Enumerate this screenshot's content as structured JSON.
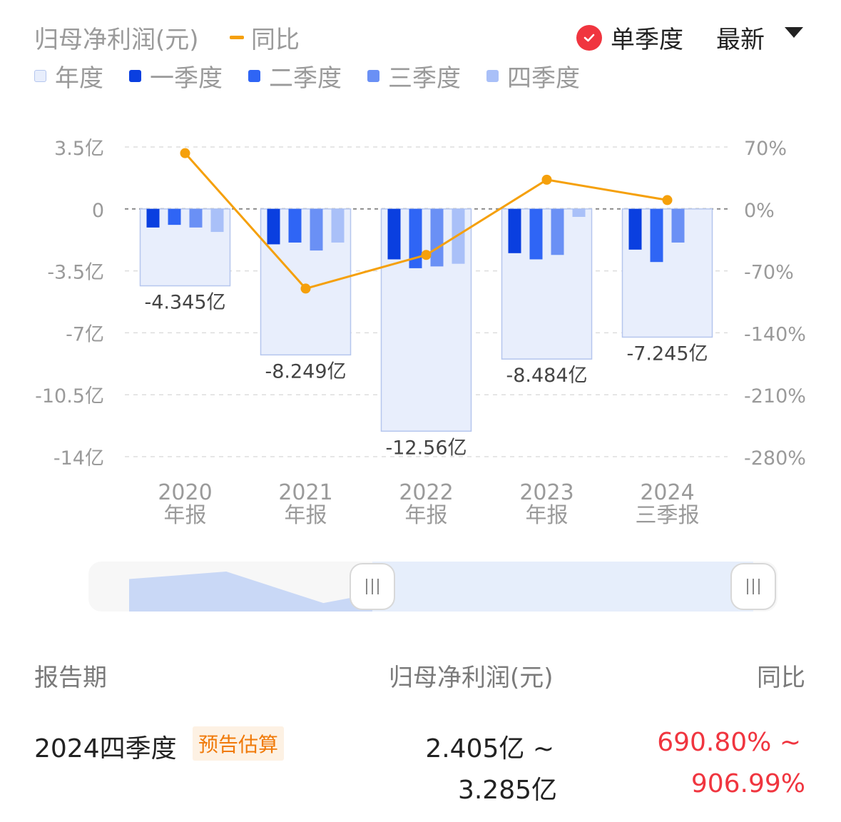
{
  "header": {
    "title": "归母净利润(元)",
    "yoy_label": "同比",
    "toggle_label": "单季度",
    "sort_label": "最新"
  },
  "legend": [
    {
      "label": "年度",
      "color": "#e8eefc"
    },
    {
      "label": "一季度",
      "color": "#0a3fe0"
    },
    {
      "label": "二季度",
      "color": "#2f65f5"
    },
    {
      "label": "三季度",
      "color": "#6a90f5"
    },
    {
      "label": "四季度",
      "color": "#a9c0f8"
    }
  ],
  "chart_data": {
    "type": "bar",
    "categories": [
      "2020\n年报",
      "2021\n年报",
      "2022\n年报",
      "2023\n年报",
      "2024\n三季报"
    ],
    "left_axis": {
      "ticks": [
        "3.5亿",
        "0",
        "-3.5亿",
        "-7亿",
        "-10.5亿",
        "-14亿"
      ],
      "values": [
        3.5,
        0,
        -3.5,
        -7,
        -10.5,
        -14
      ],
      "ylim": [
        -14,
        3.5
      ],
      "unit": "亿"
    },
    "right_axis": {
      "ticks": [
        "70%",
        "0%",
        "-70%",
        "-140%",
        "-210%",
        "-280%"
      ],
      "values": [
        70,
        0,
        -70,
        -140,
        -210,
        -280
      ],
      "ylim": [
        -280,
        70
      ]
    },
    "annual": {
      "name": "年度",
      "values": [
        -4.345,
        -8.249,
        -12.56,
        -8.484,
        -7.245
      ],
      "labels": [
        "-4.345亿",
        "-8.249亿",
        "-12.56亿",
        "-8.484亿",
        "-7.245亿"
      ]
    },
    "quarters": [
      {
        "name": "一季度",
        "values": [
          -1.05,
          -2.0,
          -2.85,
          -2.5,
          -2.3
        ]
      },
      {
        "name": "二季度",
        "values": [
          -0.9,
          -1.9,
          -3.35,
          -2.85,
          -3.0
        ]
      },
      {
        "name": "三季度",
        "values": [
          -1.05,
          -2.35,
          -3.25,
          -2.6,
          -1.9
        ]
      },
      {
        "name": "四季度",
        "values": [
          -1.3,
          -1.9,
          -3.1,
          -0.45,
          null
        ]
      }
    ],
    "yoy": {
      "name": "同比",
      "values": [
        63,
        -90,
        -52,
        33,
        10
      ]
    },
    "grid": true,
    "zero_line": "dashed"
  },
  "slider": {
    "overview": [
      0.78,
      1.0,
      0.08,
      0.62,
      0.0,
      0.35,
      0.42
    ],
    "range_start": 0.41,
    "range_end": 1.0
  },
  "table": {
    "col_period": "报告期",
    "col_profit": "归母净利润(元)",
    "col_yoy": "同比",
    "row": {
      "period": "2024四季度",
      "badge": "预告估算",
      "profit_line1": "2.405亿 ~",
      "profit_line2": "3.285亿",
      "yoy_line1": "690.80% ~",
      "yoy_line2": "906.99%"
    }
  },
  "colors": {
    "yoy_line": "#f5a00b",
    "annual_fill": "#e8eefc",
    "annual_stroke": "#b5c6ee",
    "positive_red": "#f0353f",
    "badge_orange": "#f07a0a"
  }
}
